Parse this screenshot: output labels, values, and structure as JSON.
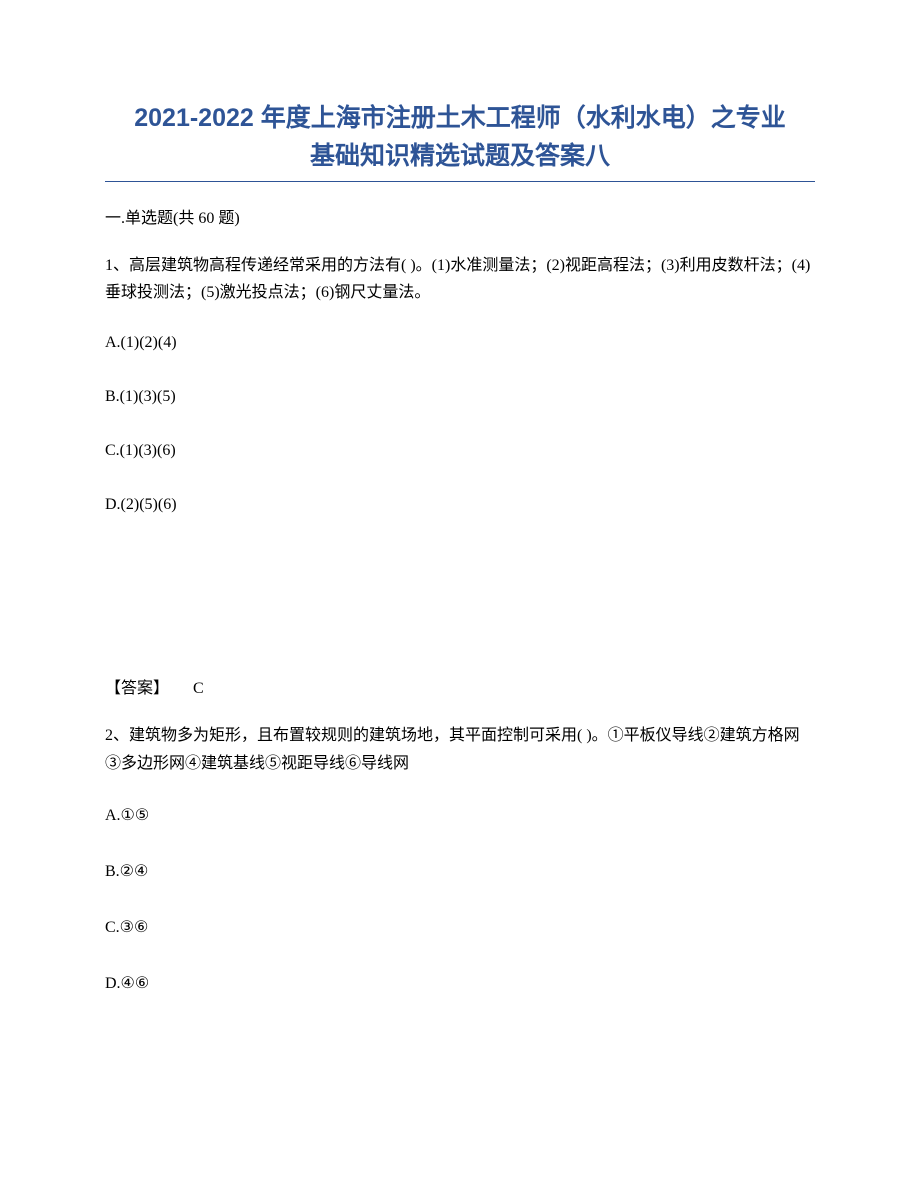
{
  "colors": {
    "title_color": "#2e5496",
    "underline_color": "#2e5496",
    "text_color": "#000000",
    "background_color": "#ffffff"
  },
  "typography": {
    "title_fontsize": 25,
    "body_fontsize": 16,
    "title_font": "SimHei",
    "body_font": "SimSun"
  },
  "title": {
    "line1": "2021-2022 年度上海市注册土木工程师（水利水电）之专业",
    "line2": "基础知识精选试题及答案八"
  },
  "section_header": "一.单选题(共 60 题)",
  "questions": [
    {
      "number": "1",
      "text": "1、高层建筑物高程传递经常采用的方法有(  )。(1)水准测量法；(2)视距高程法；(3)利用皮数杆法；(4)垂球投测法；(5)激光投点法；(6)钢尺丈量法。",
      "options": {
        "A": "A.(1)(2)(4)",
        "B": "B.(1)(3)(5)",
        "C": "C.(1)(3)(6)",
        "D": "D.(2)(5)(6)"
      },
      "answer_label": "【答案】",
      "answer_value": "C"
    },
    {
      "number": "2",
      "text": "2、建筑物多为矩形，且布置较规则的建筑场地，其平面控制可采用(  )。①平板仪导线②建筑方格网③多边形网④建筑基线⑤视距导线⑥导线网",
      "options": {
        "A": "A.①⑤",
        "B": "B.②④",
        "C": "C.③⑥",
        "D": "D.④⑥"
      }
    }
  ]
}
